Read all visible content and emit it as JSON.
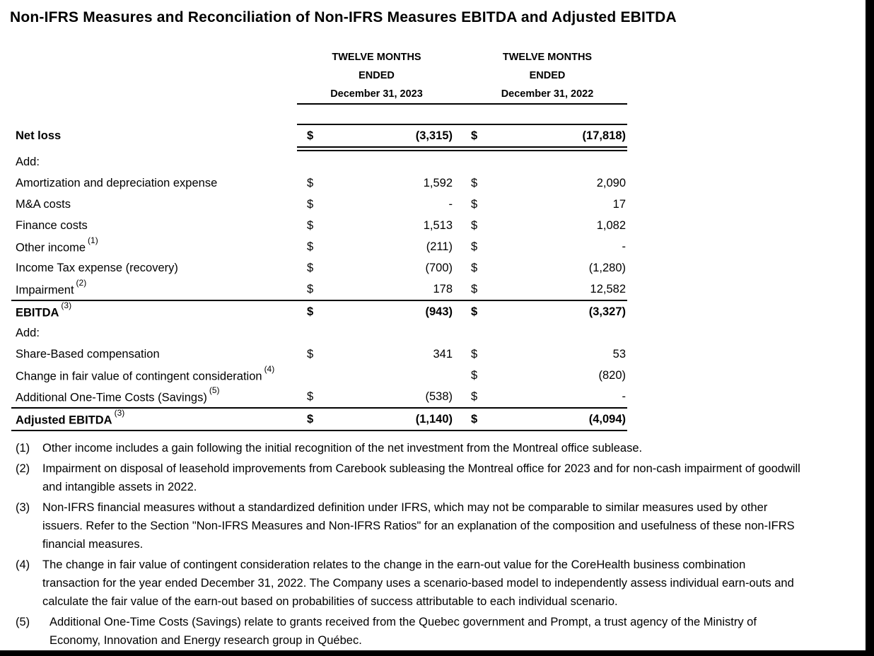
{
  "title": "Non-IFRS Measures and Reconciliation of Non-IFRS Measures EBITDA and Adjusted EBITDA",
  "colors": {
    "text": "#000000",
    "background": "#ffffff",
    "edge_bars": "#000000"
  },
  "table": {
    "col_headers": [
      {
        "line1": "TWELVE MONTHS",
        "line2": "ENDED",
        "line3": "December 31, 2023"
      },
      {
        "line1": "TWELVE MONTHS",
        "line2": "ENDED",
        "line3": "December 31, 2022"
      }
    ],
    "rows": [
      {
        "label": "Net loss",
        "sup": "",
        "dollar1": "$",
        "value1": "(3,315)",
        "dollar2": "$",
        "value2": "(17,818)"
      },
      {
        "label": "Add:",
        "sup": "",
        "dollar1": "",
        "value1": "",
        "dollar2": "",
        "value2": ""
      },
      {
        "label": "Amortization and depreciation expense",
        "sup": "",
        "dollar1": "$",
        "value1": "1,592",
        "dollar2": "$",
        "value2": "2,090"
      },
      {
        "label": "M&A costs",
        "sup": "",
        "dollar1": "$",
        "value1": "-",
        "dollar2": "$",
        "value2": "17"
      },
      {
        "label": "Finance costs",
        "sup": "",
        "dollar1": "$",
        "value1": "1,513",
        "dollar2": "$",
        "value2": "1,082"
      },
      {
        "label": "Other income",
        "sup": "(1)",
        "dollar1": "$",
        "value1": "(211)",
        "dollar2": "$",
        "value2": "-"
      },
      {
        "label": "Income Tax expense (recovery)",
        "sup": "",
        "dollar1": "$",
        "value1": "(700)",
        "dollar2": "$",
        "value2": "(1,280)"
      },
      {
        "label": "Impairment",
        "sup": "(2)",
        "dollar1": "$",
        "value1": "178",
        "dollar2": "$",
        "value2": "12,582"
      },
      {
        "label": "EBITDA",
        "sup": "(3)",
        "dollar1": "$",
        "value1": "(943)",
        "dollar2": "$",
        "value2": "(3,327)"
      },
      {
        "label": "Add:",
        "sup": "",
        "dollar1": "",
        "value1": "",
        "dollar2": "",
        "value2": ""
      },
      {
        "label": "Share-Based compensation",
        "sup": "",
        "dollar1": "$",
        "value1": "341",
        "dollar2": "$",
        "value2": "53"
      },
      {
        "label": "Change in fair value of contingent consideration",
        "sup": "(4)",
        "dollar1": "",
        "value1": "",
        "dollar2": "$",
        "value2": "(820)"
      },
      {
        "label": "Additional One-Time Costs (Savings)",
        "sup": "(5)",
        "dollar1": "$",
        "value1": "(538)",
        "dollar2": "$",
        "value2": "-"
      },
      {
        "label": "Adjusted EBITDA",
        "sup": "(3)",
        "dollar1": "$",
        "value1": "(1,140)",
        "dollar2": "$",
        "value2": "(4,094)"
      }
    ]
  },
  "footnotes": [
    {
      "num": "(1)",
      "lines": {
        "0": "Other income includes a gain following the initial recognition of the net investment from the Montreal office sublease."
      }
    },
    {
      "num": "(2)",
      "lines": {
        "0": "Impairment on disposal of leasehold improvements from Carebook subleasing the Montreal office for 2023 and for non-cash impairment of goodwill",
        "1": "and intangible assets in 2022."
      }
    },
    {
      "num": "(3)",
      "lines": {
        "0": "Non-IFRS financial measures without a standardized definition under IFRS, which may not be comparable to similar measures used by other",
        "1": "issuers. Refer to the Section \"Non-IFRS Measures and Non-IFRS Ratios\" for an explanation of the composition and usefulness of these non-IFRS",
        "2": "financial measures."
      }
    },
    {
      "num": "(4)",
      "lines": {
        "0": "The change in fair value of contingent consideration relates to the change in the earn-out value for the CoreHealth business combination",
        "1": "transaction for the year ended December 31, 2022. The Company uses a scenario-based model to independently assess individual earn-outs and",
        "2": "calculate the fair value of the earn-out based on probabilities of success attributable to each individual scenario."
      }
    },
    {
      "num": "(5)",
      "lines": {
        "0": "Additional One-Time Costs (Savings) relate to grants received from the Quebec government and Prompt, a trust agency of the Ministry of",
        "1": "Economy, Innovation and Energy research group in Québec."
      }
    }
  ]
}
